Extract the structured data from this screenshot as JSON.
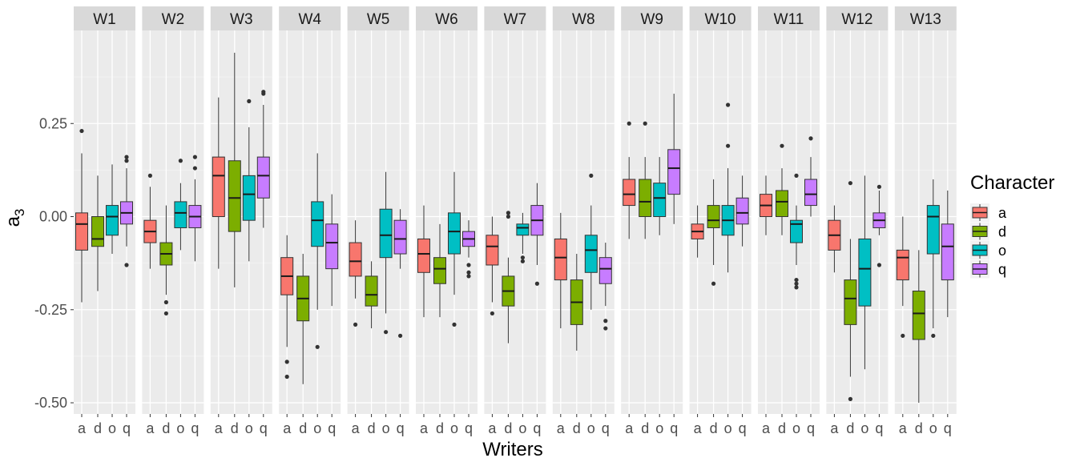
{
  "chart_data": {
    "type": "boxplot",
    "title": "",
    "xlabel": "Writers",
    "ylabel": "a",
    "ylabel_subscript": "3",
    "ylim": [
      -0.53,
      0.5
    ],
    "y_ticks": [
      {
        "value": -0.5,
        "label": "-0.50"
      },
      {
        "value": -0.25,
        "label": "-0.25"
      },
      {
        "value": 0.0,
        "label": "0.00"
      },
      {
        "value": 0.25,
        "label": "0.25"
      }
    ],
    "categories": [
      "a",
      "d",
      "o",
      "q"
    ],
    "colors": {
      "a": "#F8766D",
      "d": "#7CAE00",
      "o": "#00BFC4",
      "q": "#C77CFF"
    },
    "legend": {
      "title": "Character",
      "position": "right",
      "items": [
        "a",
        "d",
        "o",
        "q"
      ]
    },
    "panels": [
      {
        "writer": "W1",
        "boxes": [
          {
            "category": "a",
            "whisker_low": -0.23,
            "q1": -0.09,
            "median": -0.02,
            "q3": 0.01,
            "whisker_high": 0.17,
            "outliers": [
              0.23
            ]
          },
          {
            "category": "d",
            "whisker_low": -0.2,
            "q1": -0.08,
            "median": -0.06,
            "q3": 0.0,
            "whisker_high": 0.11,
            "outliers": []
          },
          {
            "category": "o",
            "whisker_low": -0.1,
            "q1": -0.05,
            "median": 0.0,
            "q3": 0.03,
            "whisker_high": 0.14,
            "outliers": []
          },
          {
            "category": "q",
            "whisker_low": -0.08,
            "q1": -0.02,
            "median": 0.01,
            "q3": 0.04,
            "whisker_high": 0.13,
            "outliers": [
              0.16,
              0.15,
              -0.13
            ]
          }
        ]
      },
      {
        "writer": "W2",
        "boxes": [
          {
            "category": "a",
            "whisker_low": -0.14,
            "q1": -0.07,
            "median": -0.04,
            "q3": -0.01,
            "whisker_high": 0.08,
            "outliers": [
              0.11
            ]
          },
          {
            "category": "d",
            "whisker_low": -0.21,
            "q1": -0.13,
            "median": -0.1,
            "q3": -0.07,
            "whisker_high": 0.03,
            "outliers": [
              -0.23,
              -0.26
            ]
          },
          {
            "category": "o",
            "whisker_low": -0.09,
            "q1": -0.03,
            "median": 0.01,
            "q3": 0.04,
            "whisker_high": 0.09,
            "outliers": [
              0.15
            ]
          },
          {
            "category": "q",
            "whisker_low": -0.12,
            "q1": -0.03,
            "median": 0.0,
            "q3": 0.03,
            "whisker_high": 0.1,
            "outliers": [
              0.16,
              0.13
            ]
          }
        ]
      },
      {
        "writer": "W3",
        "boxes": [
          {
            "category": "a",
            "whisker_low": -0.14,
            "q1": 0.0,
            "median": 0.11,
            "q3": 0.16,
            "whisker_high": 0.32,
            "outliers": []
          },
          {
            "category": "d",
            "whisker_low": -0.19,
            "q1": -0.04,
            "median": 0.05,
            "q3": 0.15,
            "whisker_high": 0.44,
            "outliers": []
          },
          {
            "category": "o",
            "whisker_low": -0.12,
            "q1": -0.01,
            "median": 0.06,
            "q3": 0.11,
            "whisker_high": 0.24,
            "outliers": [
              0.31
            ]
          },
          {
            "category": "q",
            "whisker_low": -0.03,
            "q1": 0.05,
            "median": 0.11,
            "q3": 0.16,
            "whisker_high": 0.3,
            "outliers": [
              0.33,
              0.335
            ]
          }
        ]
      },
      {
        "writer": "W4",
        "boxes": [
          {
            "category": "a",
            "whisker_low": -0.35,
            "q1": -0.21,
            "median": -0.16,
            "q3": -0.11,
            "whisker_high": -0.05,
            "outliers": [
              -0.39,
              -0.43
            ]
          },
          {
            "category": "d",
            "whisker_low": -0.45,
            "q1": -0.28,
            "median": -0.22,
            "q3": -0.16,
            "whisker_high": -0.1,
            "outliers": []
          },
          {
            "category": "o",
            "whisker_low": -0.25,
            "q1": -0.08,
            "median": -0.01,
            "q3": 0.04,
            "whisker_high": 0.17,
            "outliers": [
              -0.35
            ]
          },
          {
            "category": "q",
            "whisker_low": -0.24,
            "q1": -0.14,
            "median": -0.07,
            "q3": -0.02,
            "whisker_high": 0.06,
            "outliers": []
          }
        ]
      },
      {
        "writer": "W5",
        "boxes": [
          {
            "category": "a",
            "whisker_low": -0.22,
            "q1": -0.16,
            "median": -0.12,
            "q3": -0.07,
            "whisker_high": -0.01,
            "outliers": [
              -0.29
            ]
          },
          {
            "category": "d",
            "whisker_low": -0.3,
            "q1": -0.24,
            "median": -0.21,
            "q3": -0.16,
            "whisker_high": -0.12,
            "outliers": []
          },
          {
            "category": "o",
            "whisker_low": -0.26,
            "q1": -0.11,
            "median": -0.05,
            "q3": 0.02,
            "whisker_high": 0.12,
            "outliers": [
              -0.31
            ]
          },
          {
            "category": "q",
            "whisker_low": -0.14,
            "q1": -0.1,
            "median": -0.06,
            "q3": -0.01,
            "whisker_high": 0.02,
            "outliers": [
              -0.32
            ]
          }
        ]
      },
      {
        "writer": "W6",
        "boxes": [
          {
            "category": "a",
            "whisker_low": -0.27,
            "q1": -0.15,
            "median": -0.1,
            "q3": -0.06,
            "whisker_high": 0.03,
            "outliers": []
          },
          {
            "category": "d",
            "whisker_low": -0.27,
            "q1": -0.18,
            "median": -0.14,
            "q3": -0.11,
            "whisker_high": -0.02,
            "outliers": []
          },
          {
            "category": "o",
            "whisker_low": -0.21,
            "q1": -0.1,
            "median": -0.04,
            "q3": 0.01,
            "whisker_high": 0.12,
            "outliers": [
              -0.29
            ]
          },
          {
            "category": "q",
            "whisker_low": -0.11,
            "q1": -0.08,
            "median": -0.06,
            "q3": -0.04,
            "whisker_high": -0.01,
            "outliers": [
              -0.13,
              -0.15,
              -0.16
            ]
          }
        ]
      },
      {
        "writer": "W7",
        "boxes": [
          {
            "category": "a",
            "whisker_low": -0.23,
            "q1": -0.13,
            "median": -0.08,
            "q3": -0.05,
            "whisker_high": 0.0,
            "outliers": [
              -0.26
            ]
          },
          {
            "category": "d",
            "whisker_low": -0.34,
            "q1": -0.24,
            "median": -0.2,
            "q3": -0.16,
            "whisker_high": -0.11,
            "outliers": [
              0.01,
              0.0
            ]
          },
          {
            "category": "o",
            "whisker_low": -0.1,
            "q1": -0.05,
            "median": -0.03,
            "q3": -0.02,
            "whisker_high": 0.01,
            "outliers": [
              -0.11,
              -0.12
            ]
          },
          {
            "category": "q",
            "whisker_low": -0.13,
            "q1": -0.05,
            "median": -0.01,
            "q3": 0.03,
            "whisker_high": 0.09,
            "outliers": [
              -0.18
            ]
          }
        ]
      },
      {
        "writer": "W8",
        "boxes": [
          {
            "category": "a",
            "whisker_low": -0.3,
            "q1": -0.17,
            "median": -0.11,
            "q3": -0.06,
            "whisker_high": 0.01,
            "outliers": []
          },
          {
            "category": "d",
            "whisker_low": -0.36,
            "q1": -0.29,
            "median": -0.23,
            "q3": -0.17,
            "whisker_high": -0.1,
            "outliers": []
          },
          {
            "category": "o",
            "whisker_low": -0.25,
            "q1": -0.15,
            "median": -0.09,
            "q3": -0.05,
            "whisker_high": 0.03,
            "outliers": [
              0.11
            ]
          },
          {
            "category": "q",
            "whisker_low": -0.24,
            "q1": -0.18,
            "median": -0.14,
            "q3": -0.11,
            "whisker_high": -0.07,
            "outliers": [
              -0.28,
              -0.3
            ]
          }
        ]
      },
      {
        "writer": "W9",
        "boxes": [
          {
            "category": "a",
            "whisker_low": -0.06,
            "q1": 0.03,
            "median": 0.06,
            "q3": 0.1,
            "whisker_high": 0.16,
            "outliers": [
              0.25
            ]
          },
          {
            "category": "d",
            "whisker_low": -0.06,
            "q1": 0.0,
            "median": 0.04,
            "q3": 0.1,
            "whisker_high": 0.16,
            "outliers": [
              0.25
            ]
          },
          {
            "category": "o",
            "whisker_low": -0.05,
            "q1": 0.0,
            "median": 0.05,
            "q3": 0.09,
            "whisker_high": 0.16,
            "outliers": []
          },
          {
            "category": "q",
            "whisker_low": -0.02,
            "q1": 0.06,
            "median": 0.13,
            "q3": 0.18,
            "whisker_high": 0.33,
            "outliers": []
          }
        ]
      },
      {
        "writer": "W10",
        "boxes": [
          {
            "category": "a",
            "whisker_low": -0.11,
            "q1": -0.06,
            "median": -0.04,
            "q3": -0.02,
            "whisker_high": 0.03,
            "outliers": []
          },
          {
            "category": "d",
            "whisker_low": -0.13,
            "q1": -0.03,
            "median": -0.01,
            "q3": 0.03,
            "whisker_high": 0.1,
            "outliers": [
              -0.18
            ]
          },
          {
            "category": "o",
            "whisker_low": -0.15,
            "q1": -0.05,
            "median": -0.01,
            "q3": 0.03,
            "whisker_high": 0.13,
            "outliers": [
              0.3,
              0.19
            ]
          },
          {
            "category": "q",
            "whisker_low": -0.08,
            "q1": -0.02,
            "median": 0.01,
            "q3": 0.05,
            "whisker_high": 0.11,
            "outliers": []
          }
        ]
      },
      {
        "writer": "W11",
        "boxes": [
          {
            "category": "a",
            "whisker_low": -0.05,
            "q1": 0.0,
            "median": 0.03,
            "q3": 0.06,
            "whisker_high": 0.11,
            "outliers": []
          },
          {
            "category": "d",
            "whisker_low": -0.05,
            "q1": 0.0,
            "median": 0.04,
            "q3": 0.07,
            "whisker_high": 0.13,
            "outliers": [
              0.19
            ]
          },
          {
            "category": "o",
            "whisker_low": -0.13,
            "q1": -0.07,
            "median": -0.02,
            "q3": -0.01,
            "whisker_high": 0.03,
            "outliers": [
              -0.17,
              -0.18,
              -0.19,
              0.11
            ]
          },
          {
            "category": "q",
            "whisker_low": 0.0,
            "q1": 0.03,
            "median": 0.06,
            "q3": 0.1,
            "whisker_high": 0.16,
            "outliers": [
              0.21
            ]
          }
        ]
      },
      {
        "writer": "W12",
        "boxes": [
          {
            "category": "a",
            "whisker_low": -0.15,
            "q1": -0.09,
            "median": -0.05,
            "q3": -0.01,
            "whisker_high": 0.03,
            "outliers": []
          },
          {
            "category": "d",
            "whisker_low": -0.43,
            "q1": -0.29,
            "median": -0.22,
            "q3": -0.17,
            "whisker_high": -0.06,
            "outliers": [
              0.09,
              -0.49
            ]
          },
          {
            "category": "o",
            "whisker_low": -0.41,
            "q1": -0.24,
            "median": -0.14,
            "q3": -0.06,
            "whisker_high": 0.11,
            "outliers": []
          },
          {
            "category": "q",
            "whisker_low": -0.05,
            "q1": -0.03,
            "median": -0.01,
            "q3": 0.01,
            "whisker_high": 0.07,
            "outliers": [
              0.08,
              -0.13
            ]
          }
        ]
      },
      {
        "writer": "W13",
        "boxes": [
          {
            "category": "a",
            "whisker_low": -0.24,
            "q1": -0.17,
            "median": -0.11,
            "q3": -0.09,
            "whisker_high": 0.0,
            "outliers": [
              -0.32
            ]
          },
          {
            "category": "d",
            "whisker_low": -0.5,
            "q1": -0.33,
            "median": -0.26,
            "q3": -0.2,
            "whisker_high": -0.09,
            "outliers": []
          },
          {
            "category": "o",
            "whisker_low": -0.3,
            "q1": -0.1,
            "median": 0.0,
            "q3": 0.03,
            "whisker_high": 0.1,
            "outliers": [
              -0.32
            ]
          },
          {
            "category": "q",
            "whisker_low": -0.27,
            "q1": -0.17,
            "median": -0.08,
            "q3": -0.02,
            "whisker_high": 0.07,
            "outliers": []
          }
        ]
      }
    ]
  }
}
